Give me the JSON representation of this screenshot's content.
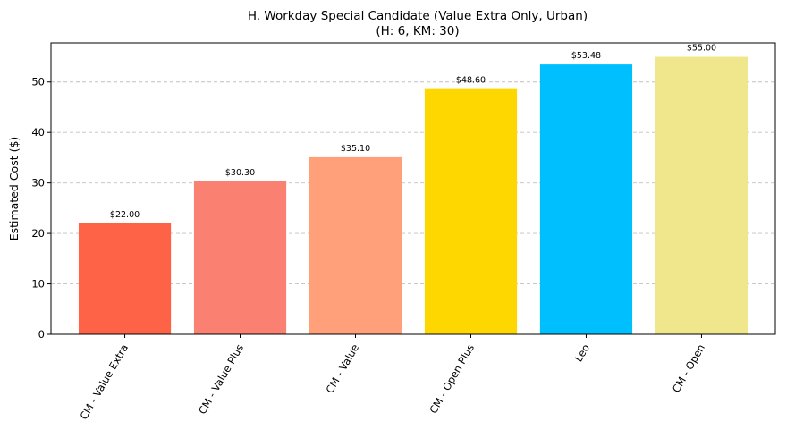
{
  "chart_data": {
    "type": "bar",
    "title": "H. Workday Special Candidate (Value Extra Only, Urban)",
    "subtitle": "(H: 6, KM: 30)",
    "xlabel": "",
    "ylabel": "Estimated Cost ($)",
    "ylim": [
      0,
      57.75
    ],
    "yticks": [
      0,
      10,
      20,
      30,
      40,
      50
    ],
    "grid": "y-dashed",
    "categories": [
      "CM - Value Extra",
      "CM - Value Plus",
      "CM - Value",
      "CM - Open Plus",
      "Leo",
      "CM - Open"
    ],
    "values": [
      22.0,
      30.3,
      35.1,
      48.6,
      53.48,
      55.0
    ],
    "data_labels": [
      "$22.00",
      "$30.30",
      "$35.10",
      "$48.60",
      "$53.48",
      "$55.00"
    ],
    "colors": [
      "#ff6347",
      "#fa8072",
      "#ffa07a",
      "#ffd700",
      "#00bfff",
      "#f0e68c"
    ]
  }
}
